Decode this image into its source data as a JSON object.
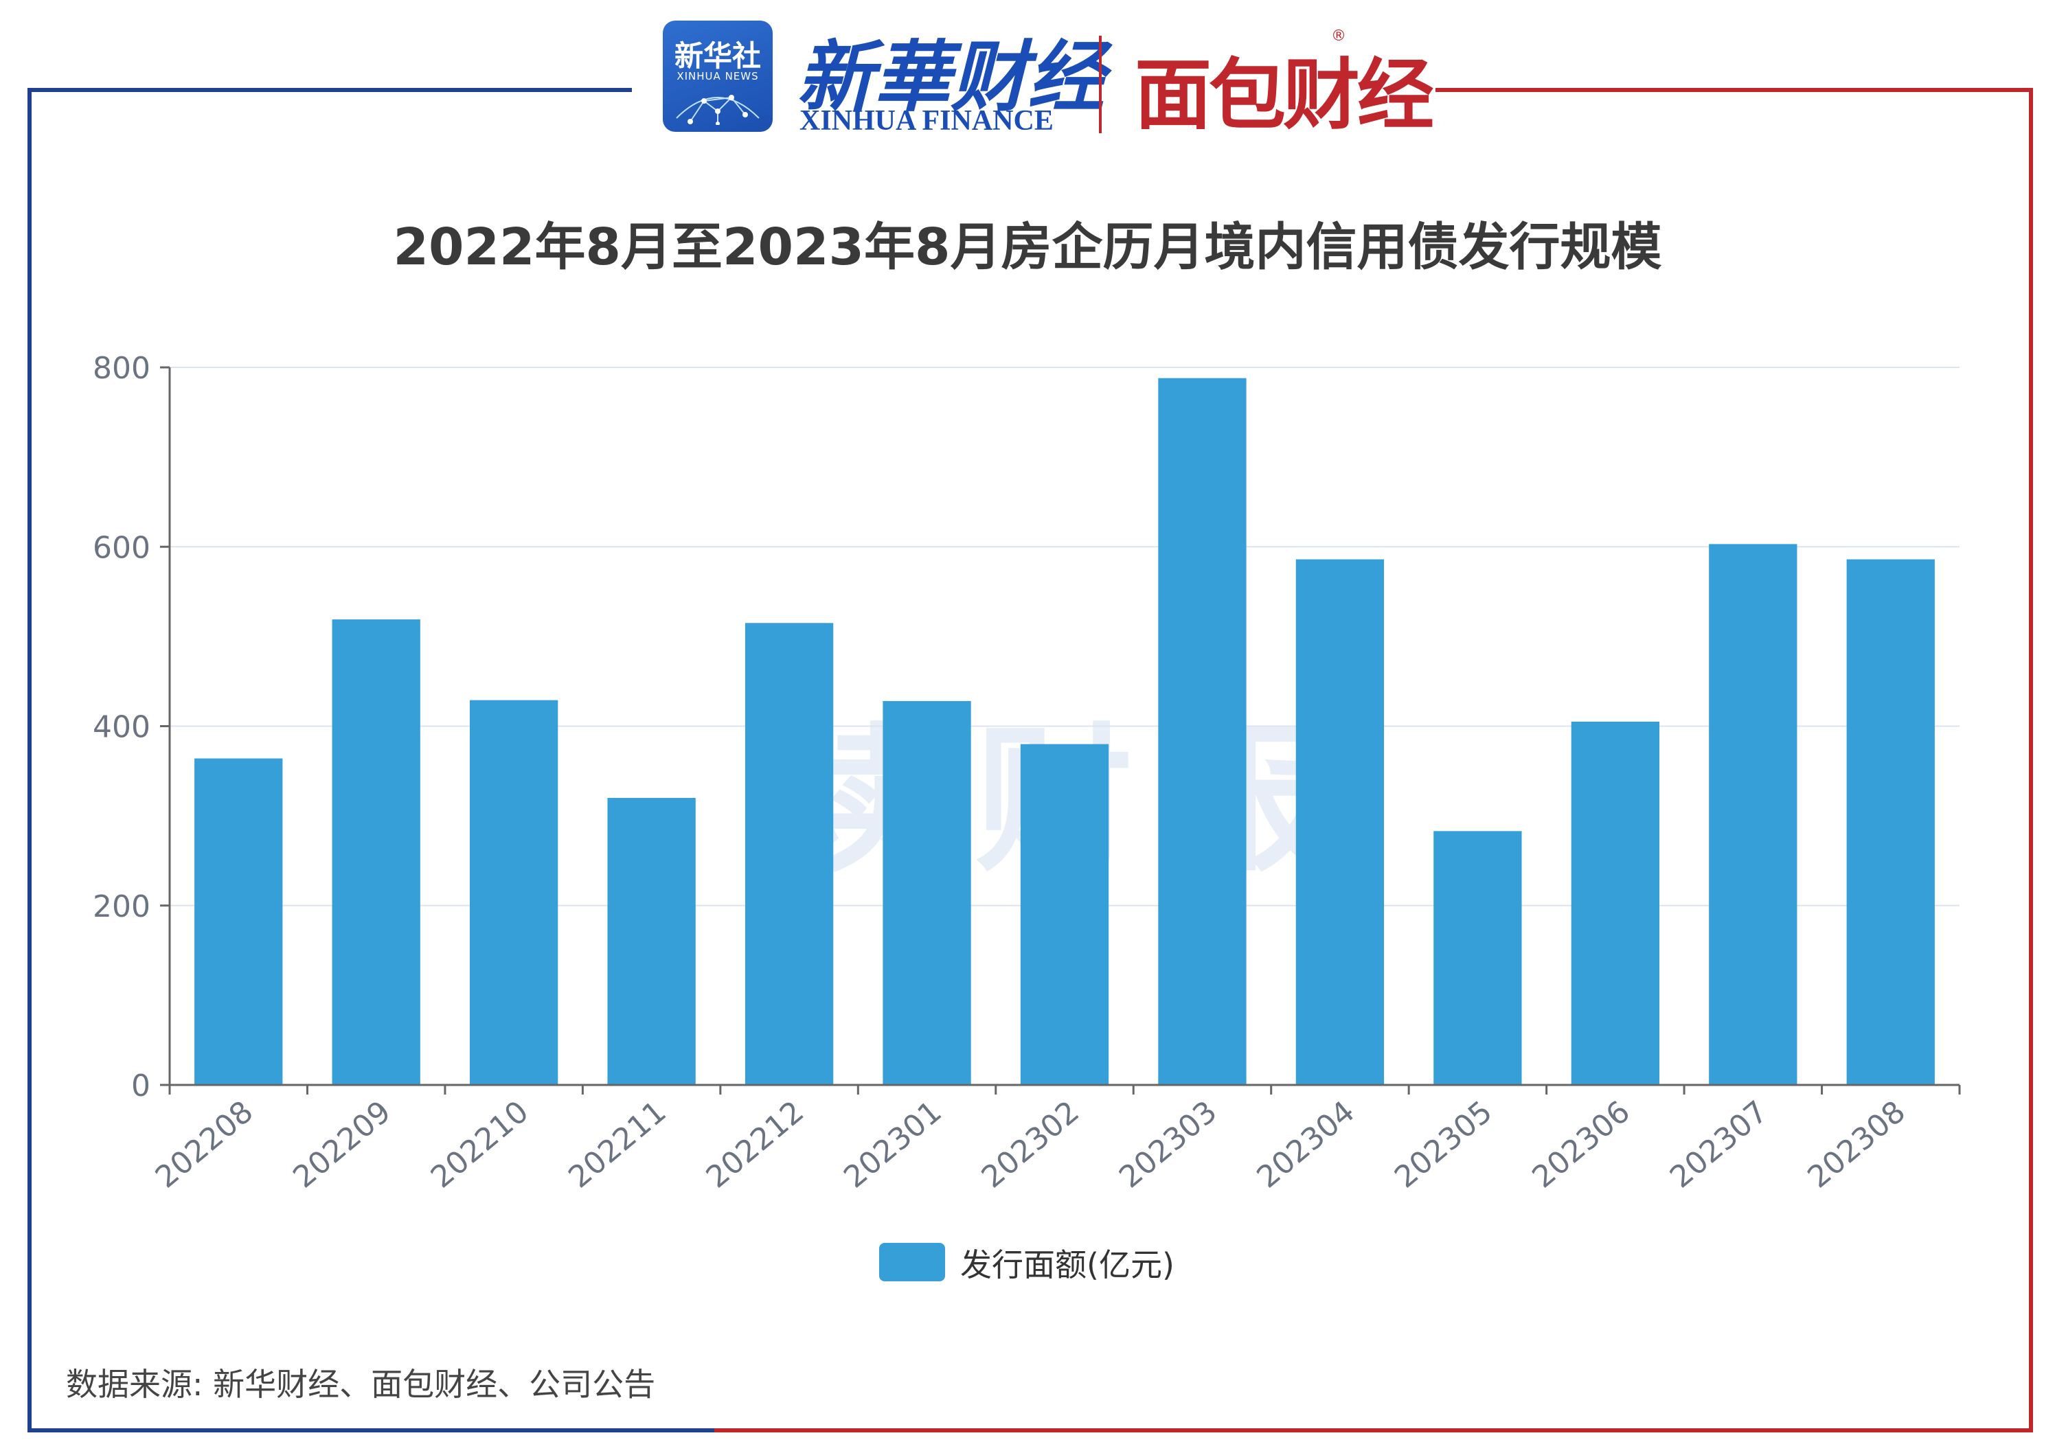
{
  "branding": {
    "xinhua_news_cn": "新华社",
    "xinhua_news_en": "XINHUA NEWS",
    "xinhua_finance_cn": "新華财经",
    "xinhua_finance_en": "XINHUA FINANCE",
    "mianbao_finance": "面包财经",
    "registered_mark": "®"
  },
  "watermark": "读财报",
  "source": "数据来源: 新华财经、面包财经、公司公告",
  "colors": {
    "bar": "#379fd8",
    "frame_left": "#1f3f8f",
    "frame_right": "#c0272d",
    "grid": "#dde3ef"
  },
  "chart_data": {
    "type": "bar",
    "title": "2022年8月至2023年8月房企历月境内信用债发行规模",
    "categories": [
      "202208",
      "202209",
      "202210",
      "202211",
      "202212",
      "202301",
      "202302",
      "202303",
      "202304",
      "202305",
      "202306",
      "202307",
      "202308"
    ],
    "series": [
      {
        "name": "发行面额(亿元)",
        "values": [
          364,
          519,
          429,
          320,
          515,
          428,
          380,
          788,
          586,
          283,
          405,
          603,
          586
        ]
      }
    ],
    "ylim": [
      0,
      800
    ],
    "yticks": [
      "0",
      "200",
      "400",
      "600",
      "800"
    ],
    "grid": true,
    "legend_position": "bottom"
  }
}
